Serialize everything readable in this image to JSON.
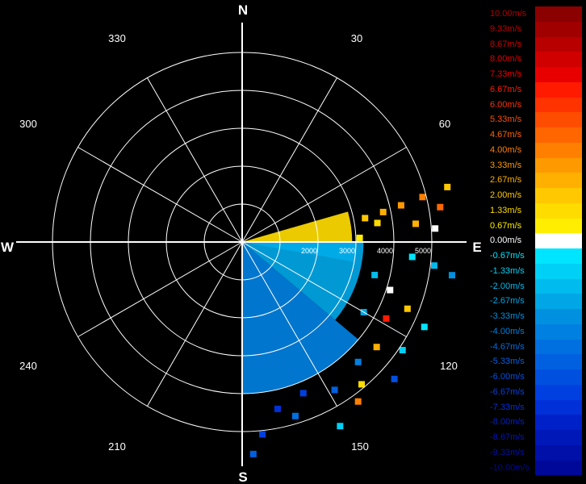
{
  "compass": {
    "north": "N",
    "east": "E",
    "south": "S",
    "west": "W"
  },
  "azimuth_labels": [
    "30",
    "60",
    "120",
    "150",
    "210",
    "240",
    "300",
    "330"
  ],
  "colorbar": [
    {
      "label": "10.00m/s",
      "color": "#8b0000",
      "text_color": "#b00000"
    },
    {
      "label": "9.33m/s",
      "color": "#a00000",
      "text_color": "#c00000"
    },
    {
      "label": "8.67m/s",
      "color": "#b80000",
      "text_color": "#d00000"
    },
    {
      "label": "8.00m/s",
      "color": "#d00000",
      "text_color": "#e00000"
    },
    {
      "label": "7.33m/s",
      "color": "#e80000",
      "text_color": "#f00000"
    },
    {
      "label": "6.67m/s",
      "color": "#ff1a00",
      "text_color": "#ff1a00"
    },
    {
      "label": "6.00m/s",
      "color": "#ff3300",
      "text_color": "#ff3300"
    },
    {
      "label": "5.33m/s",
      "color": "#ff4d00",
      "text_color": "#ff4d00"
    },
    {
      "label": "4.67m/s",
      "color": "#ff6600",
      "text_color": "#ff6600"
    },
    {
      "label": "4.00m/s",
      "color": "#ff8000",
      "text_color": "#ff8000"
    },
    {
      "label": "3.33m/s",
      "color": "#ff9900",
      "text_color": "#ff9900"
    },
    {
      "label": "2.67m/s",
      "color": "#ffb000",
      "text_color": "#ffb000"
    },
    {
      "label": "2.00m/s",
      "color": "#ffc800",
      "text_color": "#ffc800"
    },
    {
      "label": "1.33m/s",
      "color": "#ffdc00",
      "text_color": "#ffdc00"
    },
    {
      "label": "0.67m/s",
      "color": "#ffee00",
      "text_color": "#ffee00"
    },
    {
      "label": "0.00m/s",
      "color": "#ffffff",
      "text_color": "#ffffff"
    },
    {
      "label": "-0.67m/s",
      "color": "#00e5ff",
      "text_color": "#00e5ff"
    },
    {
      "label": "-1.33m/s",
      "color": "#00d0f5",
      "text_color": "#00d0f5"
    },
    {
      "label": "-2.00m/s",
      "color": "#00bbee",
      "text_color": "#00bbee"
    },
    {
      "label": "-2.67m/s",
      "color": "#00a6e6",
      "text_color": "#00a6e6"
    },
    {
      "label": "-3.33m/s",
      "color": "#0090e0",
      "text_color": "#0090e0"
    },
    {
      "label": "-4.00m/s",
      "color": "#0080e0",
      "text_color": "#0080e0"
    },
    {
      "label": "-4.67m/s",
      "color": "#0070e0",
      "text_color": "#0070e0"
    },
    {
      "label": "-5.33m/s",
      "color": "#0060e0",
      "text_color": "#0060e0"
    },
    {
      "label": "-6.00m/s",
      "color": "#0050e0",
      "text_color": "#0050e0"
    },
    {
      "label": "-6.67m/s",
      "color": "#0040e0",
      "text_color": "#0040e0"
    },
    {
      "label": "-7.33m/s",
      "color": "#0030d8",
      "text_color": "#0030d8"
    },
    {
      "label": "-8.00m/s",
      "color": "#0020c8",
      "text_color": "#0020c8"
    },
    {
      "label": "-8.67m/s",
      "color": "#0018b8",
      "text_color": "#0018b8"
    },
    {
      "label": "-9.33m/s",
      "color": "#0010a8",
      "text_color": "#0010a8"
    },
    {
      "label": "-10.00m/s",
      "color": "#000898",
      "text_color": "#000898"
    }
  ],
  "chart_data": {
    "type": "heatmap",
    "coordinate_system": "polar",
    "angle_direction": "clockwise from north",
    "azimuth_ticks_deg": [
      30,
      60,
      120,
      150,
      210,
      240,
      300,
      330
    ],
    "range_ticks": [
      "2000",
      "3000",
      "4000",
      "5000"
    ],
    "range_rings": [
      1000,
      2000,
      3000,
      4000,
      5000
    ],
    "range_max": 5000,
    "value_unit": "m/s",
    "value_range": [
      -10,
      10
    ],
    "grid": true,
    "legend": "right",
    "sectors": [
      {
        "az_start": 74,
        "az_end": 90,
        "range_start": 0,
        "range_end": 2900,
        "value": 1.5
      },
      {
        "az_start": 90,
        "az_end": 100,
        "range_start": 0,
        "range_end": 3000,
        "value": -0.67
      },
      {
        "az_start": 90,
        "az_end": 130,
        "range_start": 0,
        "range_end": 3200,
        "value": -2.67
      },
      {
        "az_start": 130,
        "az_end": 180,
        "range_start": 0,
        "range_end": 4000,
        "value": -4.0
      }
    ],
    "gates": [
      {
        "az": 79,
        "r": 3300,
        "value": 2.0
      },
      {
        "az": 78,
        "r": 3800,
        "value": 2.67
      },
      {
        "az": 77,
        "r": 4300,
        "value": 3.33
      },
      {
        "az": 76,
        "r": 4900,
        "value": 4.0
      },
      {
        "az": 80,
        "r": 5300,
        "value": 4.67
      },
      {
        "az": 75,
        "r": 5600,
        "value": 2.0
      },
      {
        "az": 82,
        "r": 3600,
        "value": 1.33
      },
      {
        "az": 84,
        "r": 4600,
        "value": 2.67
      },
      {
        "az": 86,
        "r": 5100,
        "value": 0.0
      },
      {
        "az": 88,
        "r": 3100,
        "value": 0.67
      },
      {
        "az": 95,
        "r": 4500,
        "value": -0.67
      },
      {
        "az": 97,
        "r": 5100,
        "value": -2.0
      },
      {
        "az": 99,
        "r": 5600,
        "value": -3.33
      },
      {
        "az": 104,
        "r": 3600,
        "value": -2.0
      },
      {
        "az": 108,
        "r": 4100,
        "value": 0.0
      },
      {
        "az": 112,
        "r": 4700,
        "value": 2.0
      },
      {
        "az": 115,
        "r": 5300,
        "value": -0.67
      },
      {
        "az": 118,
        "r": 4300,
        "value": 6.67
      },
      {
        "az": 120,
        "r": 3700,
        "value": -2.67
      },
      {
        "az": 124,
        "r": 5100,
        "value": -1.33
      },
      {
        "az": 128,
        "r": 4500,
        "value": 2.67
      },
      {
        "az": 132,
        "r": 5400,
        "value": -6.0
      },
      {
        "az": 136,
        "r": 4400,
        "value": -4.0
      },
      {
        "az": 140,
        "r": 4900,
        "value": 1.33
      },
      {
        "az": 144,
        "r": 5200,
        "value": 4.0
      },
      {
        "az": 148,
        "r": 4600,
        "value": -5.33
      },
      {
        "az": 152,
        "r": 5500,
        "value": -1.33
      },
      {
        "az": 158,
        "r": 4300,
        "value": -6.67
      },
      {
        "az": 163,
        "r": 4800,
        "value": -4.67
      },
      {
        "az": 168,
        "r": 4500,
        "value": -7.33
      },
      {
        "az": 174,
        "r": 5100,
        "value": -6.67
      },
      {
        "az": 177,
        "r": 5600,
        "value": -5.33
      }
    ]
  }
}
